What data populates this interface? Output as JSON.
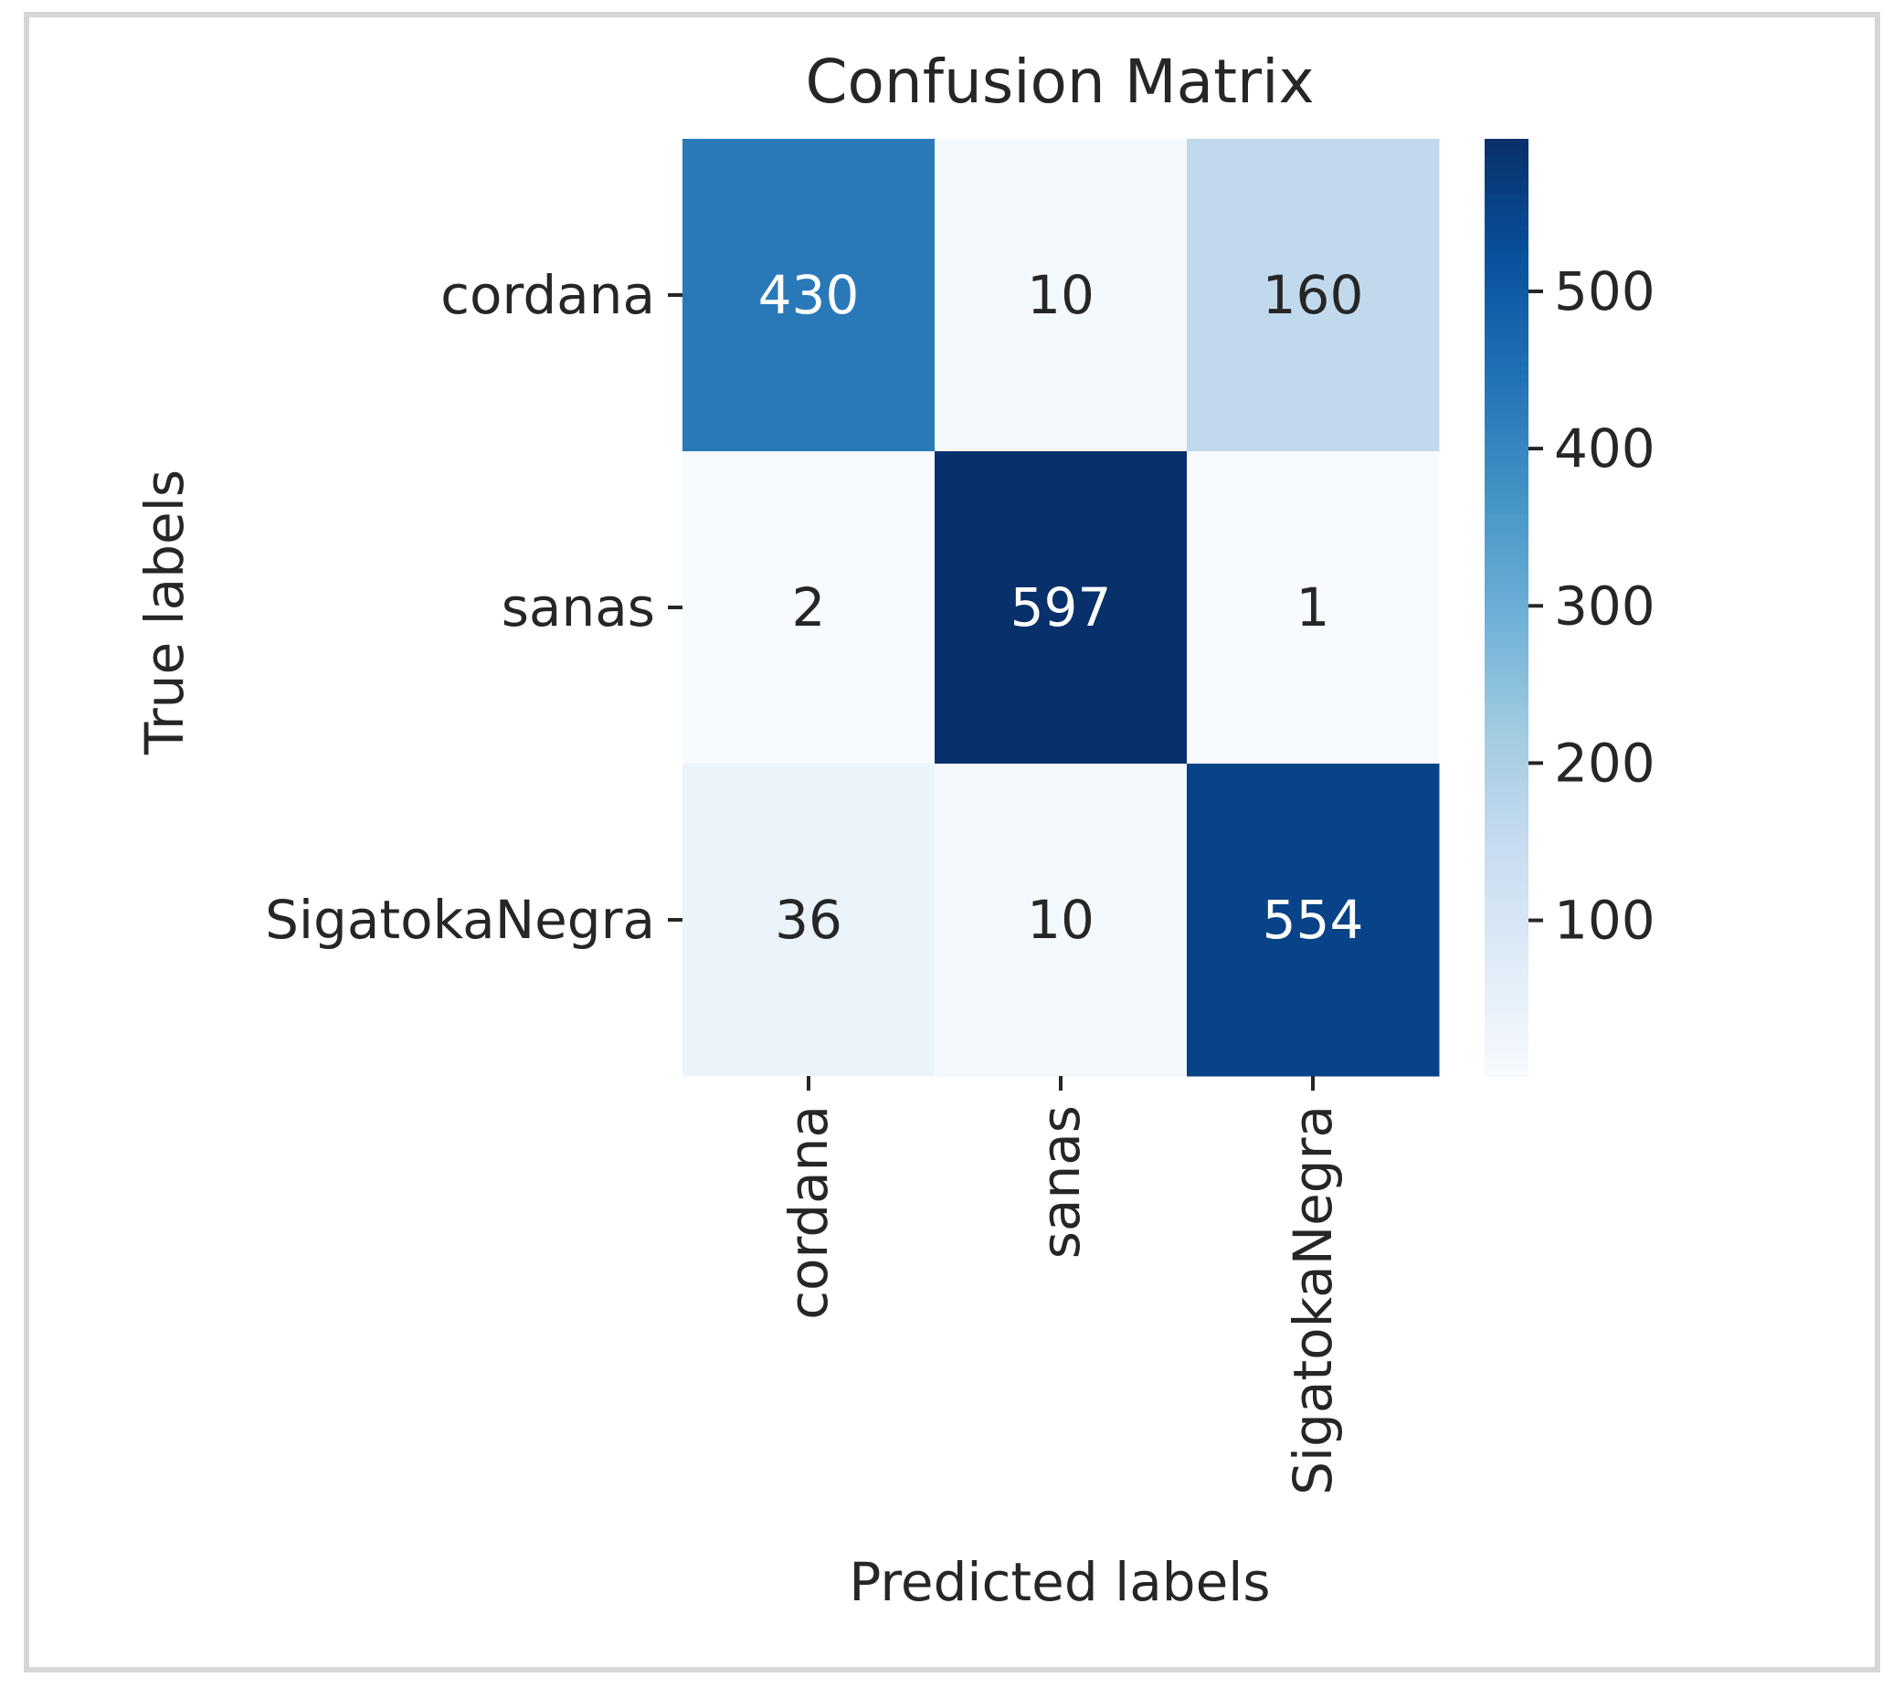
{
  "chart_data": {
    "type": "heatmap",
    "title": "Confusion Matrix",
    "xlabel": "Predicted labels",
    "ylabel": "True labels",
    "x_categories": [
      "cordana",
      "sanas",
      "SigatokaNegra"
    ],
    "y_categories": [
      "cordana",
      "sanas",
      "SigatokaNegra"
    ],
    "values": [
      [
        430,
        10,
        160
      ],
      [
        2,
        597,
        1
      ],
      [
        36,
        10,
        554
      ]
    ],
    "colormap": "Blues",
    "colorbar": {
      "range": [
        1,
        597
      ],
      "ticks": [
        "100",
        "200",
        "300",
        "400",
        "500"
      ]
    },
    "colors": {
      "low": "#f7fbff",
      "high": "#08306b",
      "text_dark": "#262626",
      "text_light": "#ffffff"
    }
  }
}
